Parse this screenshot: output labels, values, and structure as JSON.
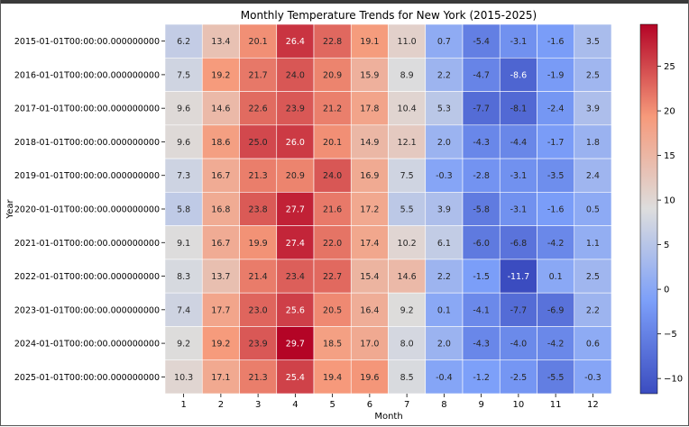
{
  "chart_data": {
    "type": "heatmap",
    "title": "Monthly Temperature Trends for New York (2015-2025)",
    "xlabel": "Month",
    "ylabel": "Year",
    "x": [
      "1",
      "2",
      "3",
      "4",
      "5",
      "6",
      "7",
      "8",
      "9",
      "10",
      "11",
      "12"
    ],
    "y": [
      "2015-01-01T00:00:00.000000000",
      "2016-01-01T00:00:00.000000000",
      "2017-01-01T00:00:00.000000000",
      "2018-01-01T00:00:00.000000000",
      "2019-01-01T00:00:00.000000000",
      "2020-01-01T00:00:00.000000000",
      "2021-01-01T00:00:00.000000000",
      "2022-01-01T00:00:00.000000000",
      "2023-01-01T00:00:00.000000000",
      "2024-01-01T00:00:00.000000000",
      "2025-01-01T00:00:00.000000000"
    ],
    "values": [
      [
        6.2,
        13.4,
        20.1,
        26.4,
        22.8,
        19.1,
        11.0,
        0.7,
        -5.4,
        -3.1,
        -1.6,
        3.5
      ],
      [
        7.5,
        19.2,
        21.7,
        24.0,
        20.9,
        15.9,
        8.9,
        2.2,
        -4.7,
        -8.6,
        -1.9,
        2.5
      ],
      [
        9.6,
        14.6,
        22.6,
        23.9,
        21.2,
        17.8,
        10.4,
        5.3,
        -7.7,
        -8.1,
        -2.4,
        3.9
      ],
      [
        9.6,
        18.6,
        25.0,
        26.0,
        20.1,
        14.9,
        12.1,
        2.0,
        -4.3,
        -4.4,
        -1.7,
        1.8
      ],
      [
        7.3,
        16.7,
        21.3,
        20.9,
        24.0,
        16.9,
        7.5,
        -0.3,
        -2.8,
        -3.1,
        -3.5,
        2.4
      ],
      [
        5.8,
        16.8,
        23.8,
        27.7,
        21.6,
        17.2,
        5.5,
        3.9,
        -5.8,
        -3.1,
        -1.6,
        0.5
      ],
      [
        9.1,
        16.7,
        19.9,
        27.4,
        22.0,
        17.4,
        10.2,
        6.1,
        -6.0,
        -6.8,
        -4.2,
        1.1
      ],
      [
        8.3,
        13.7,
        21.4,
        23.4,
        22.7,
        15.4,
        14.6,
        2.2,
        -1.5,
        -11.7,
        0.1,
        2.5
      ],
      [
        7.4,
        17.7,
        23.0,
        25.6,
        20.5,
        16.4,
        9.2,
        0.1,
        -4.1,
        -7.7,
        -6.9,
        2.2
      ],
      [
        9.2,
        19.2,
        23.9,
        29.7,
        18.5,
        17.0,
        8.0,
        2.0,
        -4.3,
        -4.0,
        -4.2,
        0.6
      ],
      [
        10.3,
        17.1,
        21.3,
        25.4,
        19.4,
        19.6,
        8.5,
        -0.4,
        -1.2,
        -2.5,
        -5.5,
        -0.3
      ]
    ],
    "colormap": "coolwarm",
    "vmin": -11.7,
    "vmax": 29.7,
    "colorbar_ticks": [
      -10,
      -5,
      0,
      5,
      10,
      15,
      20,
      25
    ],
    "grid": false,
    "legend": "colorbar-right"
  }
}
